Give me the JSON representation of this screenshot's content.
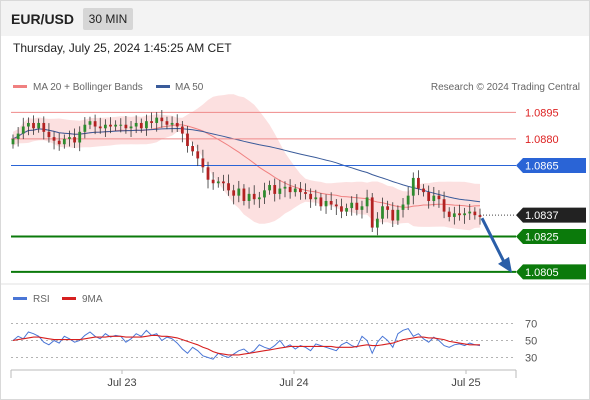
{
  "header": {
    "symbol": "EUR/USD",
    "timeframe": "30 MIN"
  },
  "timestamp": "Thursday, July 25, 2024 1:45:25 AM CET",
  "legend": {
    "ma20_label": "MA 20 + Bollinger Bands",
    "ma50_label": "MA 50",
    "credit": "Research © 2024 Trading Central",
    "ma20_color": "#f08080",
    "ma50_color": "#3a5b9a"
  },
  "rsi_legend": {
    "rsi_label": "RSI",
    "ma_label": "9MA",
    "rsi_color": "#4a76d6",
    "ma_color": "#d62020"
  },
  "chart_data": [
    {
      "type": "candlestick",
      "x_tick_labels": [
        "Jul 23",
        "Jul 24",
        "Jul 25"
      ],
      "ylim": [
        1.0801,
        1.0898
      ],
      "price_close": [
        1.088,
        1.0883,
        1.0887,
        1.0889,
        1.0886,
        1.0889,
        1.0884,
        1.0881,
        1.0879,
        1.0877,
        1.088,
        1.0881,
        1.0878,
        1.0884,
        1.0888,
        1.089,
        1.0887,
        1.0886,
        1.0888,
        1.0887,
        1.0888,
        1.0888,
        1.0886,
        1.0887,
        1.0889,
        1.0886,
        1.089,
        1.0889,
        1.0892,
        1.089,
        1.0888,
        1.0889,
        1.0887,
        1.0883,
        1.0876,
        1.0873,
        1.0869,
        1.0864,
        1.0857,
        1.0855,
        1.0856,
        1.0855,
        1.0851,
        1.0848,
        1.0852,
        1.0845,
        1.0849,
        1.0846,
        1.0847,
        1.0851,
        1.0854,
        1.0849,
        1.0852,
        1.0853,
        1.085,
        1.0852,
        1.085,
        1.0849,
        1.0846,
        1.0847,
        1.0842,
        1.0845,
        1.0843,
        1.0842,
        1.0839,
        1.0841,
        1.0844,
        1.084,
        1.0842,
        1.0847,
        1.083,
        1.0835,
        1.0842,
        1.084,
        1.0834,
        1.084,
        1.0843,
        1.0848,
        1.0858,
        1.0852,
        1.085,
        1.0845,
        1.0848,
        1.0846,
        1.0839,
        1.0836,
        1.0838,
        1.0837,
        1.0838,
        1.0839,
        1.0837,
        1.0836
      ],
      "levels": [
        {
          "label": "1.0895",
          "value": 1.0895,
          "kind": "resistance"
        },
        {
          "label": "1.0880",
          "value": 1.088,
          "kind": "resistance"
        },
        {
          "label": "1.0865",
          "value": 1.0865,
          "kind": "pivot"
        },
        {
          "label": "1.0837",
          "value": 1.0837,
          "kind": "last"
        },
        {
          "label": "1.0825",
          "value": 1.0825,
          "kind": "target"
        },
        {
          "label": "1.0805",
          "value": 1.0805,
          "kind": "target"
        }
      ],
      "series": [
        {
          "name": "MA 20 + Bollinger Bands",
          "color": "#f08080"
        },
        {
          "name": "MA 50",
          "color": "#3a5b9a"
        }
      ],
      "forecast": {
        "direction": "down",
        "from": 1.0837,
        "to": 1.0805
      },
      "colors": {
        "up": "#2e8b2e",
        "down": "#b22222",
        "band": "#fbd6d6",
        "pivot": "#2a64d6",
        "target": "#0b7a0b"
      }
    },
    {
      "type": "line",
      "name": "RSI",
      "yticks": [
        "70",
        "50",
        "30"
      ],
      "ylim": [
        20,
        80
      ],
      "series": [
        {
          "name": "RSI",
          "values": [
            50,
            55,
            52,
            60,
            58,
            55,
            48,
            45,
            50,
            47,
            55,
            52,
            48,
            50,
            56,
            60,
            55,
            52,
            58,
            54,
            56,
            55,
            48,
            52,
            58,
            55,
            62,
            56,
            58,
            50,
            54,
            52,
            47,
            40,
            35,
            42,
            38,
            32,
            30,
            28,
            35,
            32,
            30,
            34,
            38,
            40,
            35,
            38,
            45,
            42,
            40,
            44,
            50,
            42,
            45,
            40,
            44,
            42,
            38,
            46,
            44,
            42,
            40,
            38,
            45,
            48,
            44,
            42,
            55,
            50,
            35,
            48,
            55,
            50,
            42,
            58,
            62,
            64,
            55,
            58,
            52,
            48,
            54,
            50,
            44,
            42,
            45,
            46,
            44,
            47,
            45,
            44
          ]
        },
        {
          "name": "9MA",
          "values": [
            50,
            51,
            52,
            53,
            54,
            54,
            53,
            52,
            51,
            51,
            51,
            51,
            51,
            51,
            52,
            53,
            54,
            54,
            54,
            55,
            55,
            55,
            54,
            54,
            54,
            54,
            55,
            56,
            56,
            55,
            55,
            54,
            53,
            51,
            49,
            47,
            45,
            42,
            40,
            37,
            35,
            34,
            33,
            33,
            33,
            34,
            35,
            36,
            37,
            38,
            39,
            40,
            41,
            42,
            43,
            43,
            43,
            43,
            43,
            43,
            43,
            43,
            43,
            42,
            42,
            42,
            42,
            43,
            44,
            45,
            44,
            44,
            45,
            46,
            47,
            49,
            51,
            52,
            53,
            54,
            54,
            53,
            53,
            52,
            51,
            49,
            48,
            47,
            46,
            45,
            45,
            45
          ]
        }
      ]
    }
  ]
}
